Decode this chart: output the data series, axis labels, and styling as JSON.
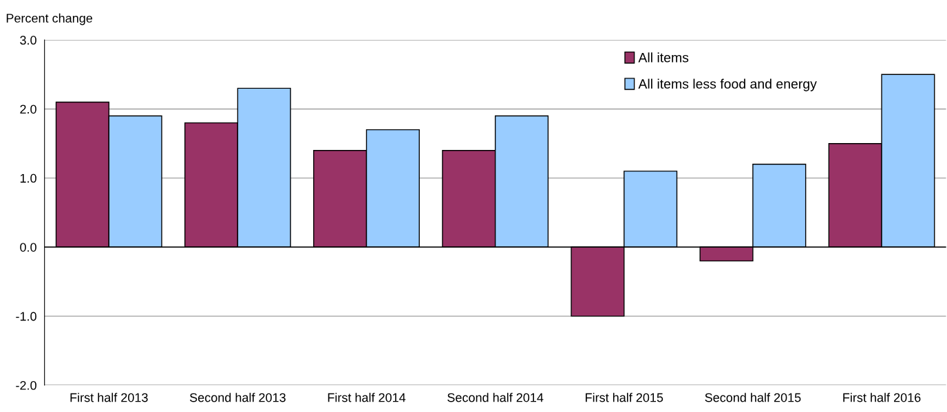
{
  "chart_data": {
    "type": "bar",
    "ylabel": "Percent change",
    "categories": [
      "First half 2013",
      "Second half 2013",
      "First half 2014",
      "Second half 2014",
      "First half 2015",
      "Second half 2015",
      "First half 2016"
    ],
    "series": [
      {
        "name": "All items",
        "color": "#993366",
        "values": [
          2.1,
          1.8,
          1.4,
          1.4,
          -1.0,
          -0.2,
          1.5
        ]
      },
      {
        "name": "All items less food and energy",
        "color": "#99ccff",
        "values": [
          1.9,
          2.3,
          1.7,
          1.9,
          1.1,
          1.2,
          2.5
        ]
      }
    ],
    "ylim": [
      -2,
      3
    ],
    "yticks": [
      {
        "value": -2,
        "label": "-2.0"
      },
      {
        "value": -1,
        "label": "-1.0"
      },
      {
        "value": 0,
        "label": "0.0"
      },
      {
        "value": 1,
        "label": "1.0"
      },
      {
        "value": 2,
        "label": "2.0"
      },
      {
        "value": 3,
        "label": "3.0"
      }
    ],
    "grid": "y",
    "legend": "top right"
  }
}
